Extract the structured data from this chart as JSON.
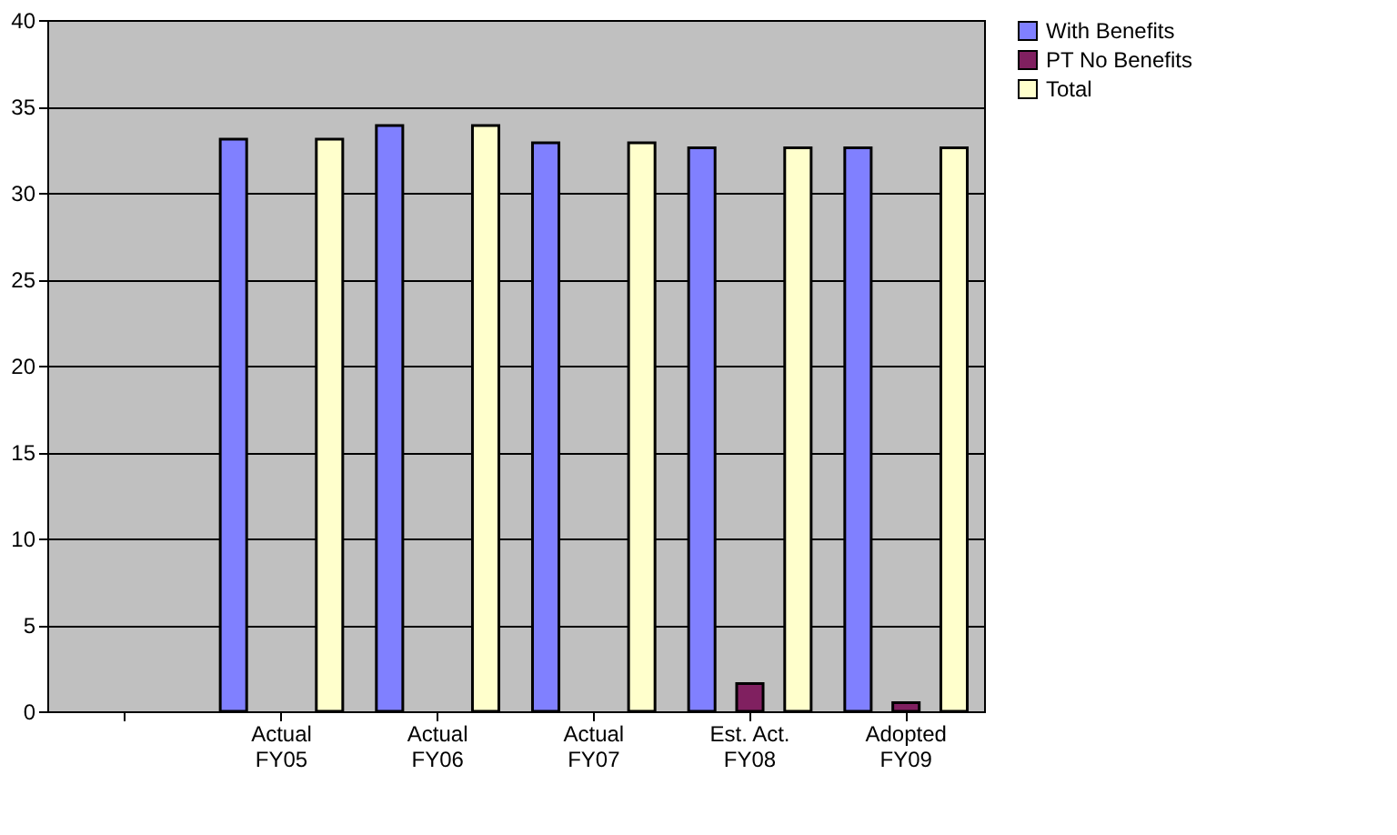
{
  "chart_data": {
    "type": "bar",
    "categories": [
      null,
      "Actual\nFY05",
      "Actual\nFY06",
      "Actual\nFY07",
      "Est. Act.\nFY08",
      "Adopted\nFY09"
    ],
    "series": [
      {
        "name": "With Benefits",
        "color": "#8080ff",
        "values": [
          null,
          33.1,
          33.9,
          32.9,
          32.6,
          32.6
        ]
      },
      {
        "name": "PT No Benefits",
        "color": "#802060",
        "values": [
          null,
          null,
          null,
          null,
          1.6,
          0.5
        ]
      },
      {
        "name": "Total",
        "color": "#ffffcc",
        "values": [
          null,
          33.1,
          33.9,
          32.9,
          32.6,
          32.6
        ]
      }
    ],
    "ylim": [
      0,
      40
    ],
    "yticks": [
      0,
      5,
      10,
      15,
      20,
      25,
      30,
      35,
      40
    ],
    "grid": "y",
    "legend": "right"
  }
}
